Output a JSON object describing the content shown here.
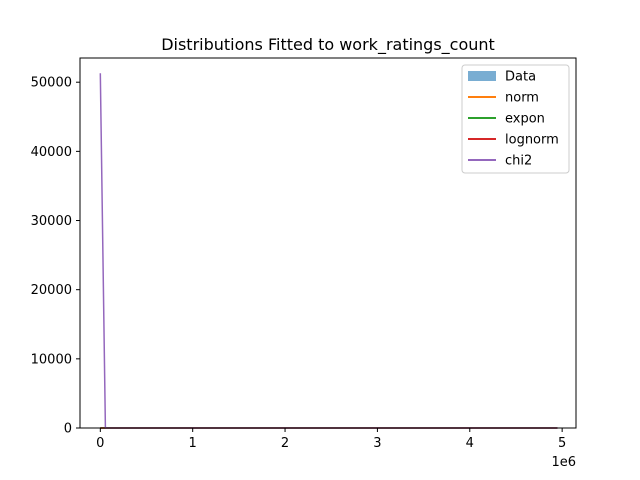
{
  "chart_data": {
    "type": "line",
    "title": "Distributions Fitted to work_ratings_count",
    "xlabel": "",
    "ylabel": "",
    "x_offset_label": "1e6",
    "xlim": [
      -220000,
      5150000
    ],
    "ylim": [
      0,
      53500
    ],
    "x_ticks": [
      0,
      1000000,
      2000000,
      3000000,
      4000000,
      5000000
    ],
    "x_tick_labels": [
      "0",
      "1",
      "2",
      "3",
      "4",
      "5"
    ],
    "y_ticks": [
      0,
      10000,
      20000,
      30000,
      40000,
      50000
    ],
    "y_tick_labels": [
      "0",
      "10000",
      "20000",
      "30000",
      "40000",
      "50000"
    ],
    "grid": false,
    "legend_position": "top-right",
    "legend": [
      {
        "name": "Data",
        "kind": "patch",
        "color": "#1f77b4",
        "opacity": 0.6
      },
      {
        "name": "norm",
        "kind": "line",
        "color": "#ff7f0e"
      },
      {
        "name": "expon",
        "kind": "line",
        "color": "#2ca02c"
      },
      {
        "name": "lognorm",
        "kind": "line",
        "color": "#d62728"
      },
      {
        "name": "chi2",
        "kind": "line",
        "color": "#9467bd"
      }
    ],
    "series": [
      {
        "name": "Data",
        "kind": "hist",
        "color": "#1f77b4",
        "opacity": 0.6,
        "x": [
          0,
          4950000
        ],
        "y": [
          0,
          0
        ]
      },
      {
        "name": "norm",
        "kind": "line",
        "color": "#ff7f0e",
        "x": [
          0,
          4950000
        ],
        "y": [
          0,
          0
        ]
      },
      {
        "name": "expon",
        "kind": "line",
        "color": "#2ca02c",
        "x": [
          0,
          4950000
        ],
        "y": [
          0,
          0
        ]
      },
      {
        "name": "lognorm",
        "kind": "line",
        "color": "#d62728",
        "x": [
          0,
          4950000
        ],
        "y": [
          0,
          0
        ]
      },
      {
        "name": "chi2",
        "kind": "line",
        "color": "#9467bd",
        "x": [
          0,
          55000,
          60000,
          4950000
        ],
        "y": [
          51300,
          0,
          0,
          0
        ]
      }
    ]
  }
}
